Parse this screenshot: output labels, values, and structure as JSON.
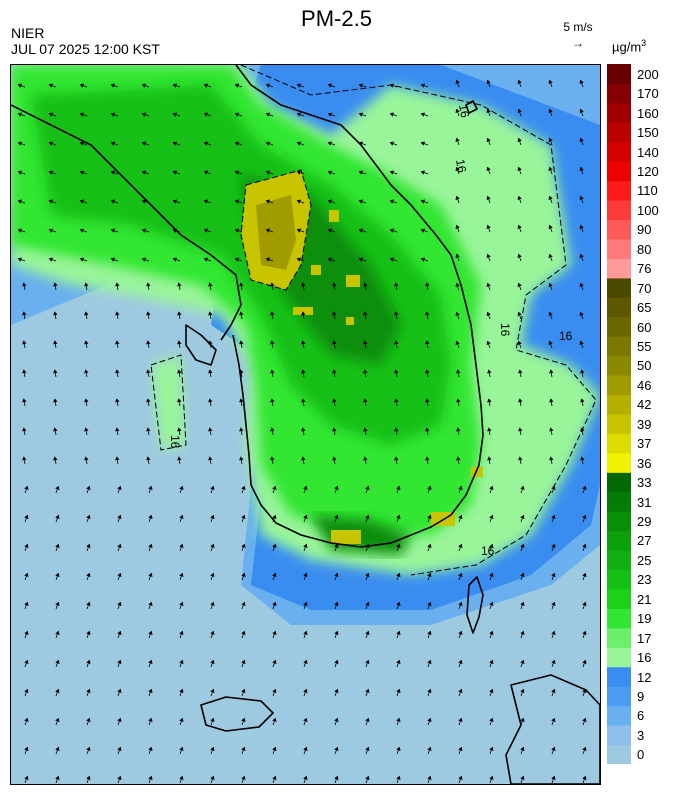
{
  "header": {
    "title": "PM-2.5",
    "source": "NIER",
    "datetime": "JUL 07 2025 12:00 KST",
    "wind_scale_label": "5 m/s",
    "unit_base": "µg/m",
    "unit_exp": "3"
  },
  "legend": {
    "levels": [
      "0",
      "3",
      "6",
      "9",
      "12",
      "16",
      "17",
      "19",
      "21",
      "23",
      "25",
      "27",
      "29",
      "31",
      "33",
      "36",
      "37",
      "39",
      "42",
      "46",
      "50",
      "55",
      "60",
      "65",
      "70",
      "76",
      "80",
      "90",
      "100",
      "110",
      "120",
      "140",
      "150",
      "160",
      "170",
      "200"
    ],
    "colors": [
      "#9ecae1",
      "#8cc0ea",
      "#6ab0ee",
      "#4a9cf0",
      "#3a8df0",
      "#99f59a",
      "#6cf06c",
      "#33e633",
      "#1ad21a",
      "#14c014",
      "#10b010",
      "#0ca00c",
      "#088e08",
      "#057c05",
      "#036a03",
      "#f2f200",
      "#dcdc00",
      "#c8c400",
      "#b4b000",
      "#a09c00",
      "#8c8800",
      "#7c7800",
      "#6c6800",
      "#5c5800",
      "#4c4800",
      "#ff9a9a",
      "#ff7a7a",
      "#ff5a5a",
      "#ff3a3a",
      "#ff1a1a",
      "#ee0000",
      "#d40000",
      "#bb0000",
      "#a00000",
      "#850000",
      "#680000"
    ]
  },
  "map": {
    "contour_label": "16",
    "colors": {
      "sea_far": "#9ecae1",
      "sea_mid": "#6ab0ee",
      "sea_near": "#3a8df0",
      "green_light": "#99f59a",
      "green": "#33e633",
      "green_mid": "#14c014",
      "green_dark": "#088e08",
      "yellow": "#c8c400",
      "yellow_dark": "#a09c00",
      "coast": "#000000"
    }
  }
}
